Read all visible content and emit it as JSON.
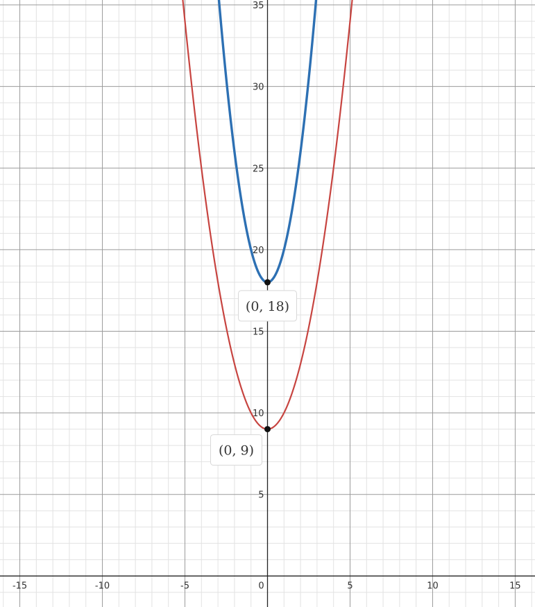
{
  "chart_data": {
    "type": "line",
    "title": "",
    "xlabel": "",
    "ylabel": "",
    "xlim": [
      -16.2,
      16.2
    ],
    "ylim": [
      -1.9,
      35.3
    ],
    "grid": true,
    "minor_grid_step": 1,
    "major_grid_step": 5,
    "x_ticks": [
      -15,
      -10,
      -5,
      0,
      5,
      10,
      15
    ],
    "y_ticks": [
      5,
      10,
      15,
      20,
      25,
      30,
      35
    ],
    "x_tick_labels": [
      "-15",
      "-10",
      "-5",
      "0",
      "5",
      "10",
      "15"
    ],
    "y_tick_labels": [
      "5",
      "10",
      "15",
      "20",
      "25",
      "30",
      "35"
    ],
    "series": [
      {
        "color": "#c74440",
        "coefficient": 1,
        "offset": 9,
        "stroke": "thin"
      },
      {
        "color": "#2d70b3",
        "coefficient": 2,
        "offset": 18,
        "stroke": "thick"
      }
    ],
    "points": [
      {
        "x": 0,
        "y": 18,
        "label": "(0, 18)",
        "label_position": "below"
      },
      {
        "x": 0,
        "y": 9,
        "label": "(0, 9)",
        "label_position": "below-left"
      }
    ]
  }
}
